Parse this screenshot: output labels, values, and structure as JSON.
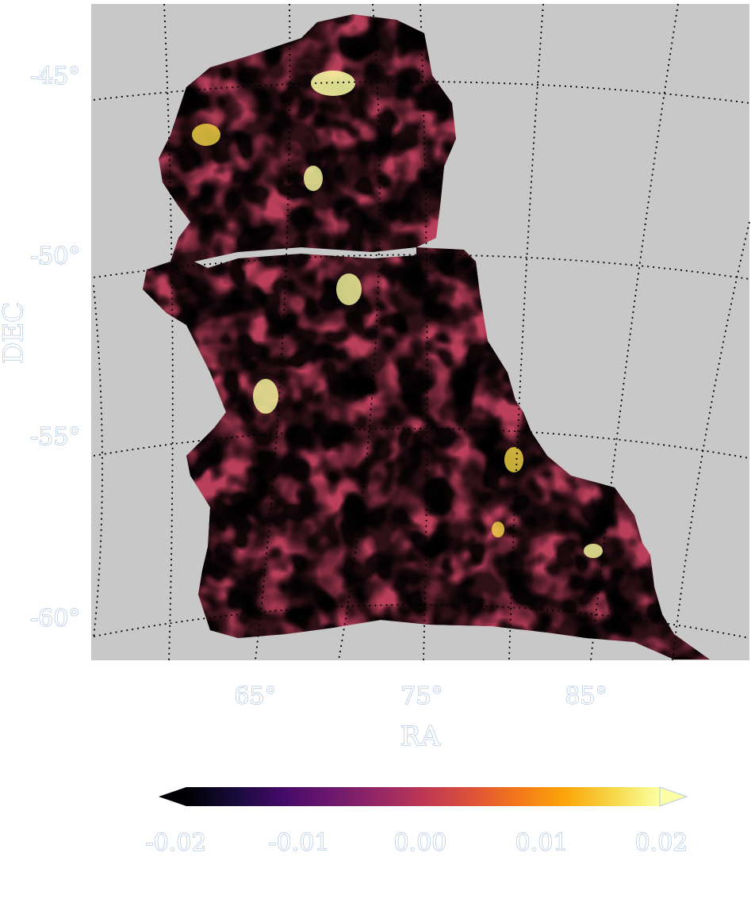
{
  "chart_data": {
    "type": "heatmap",
    "projection": "orthographic sky map (curved RA/DEC graticule)",
    "xlabel": "RA",
    "ylabel": "DEC",
    "ra_ticks": [
      "65°",
      "75°",
      "85°"
    ],
    "dec_ticks": [
      "-45°",
      "-50°",
      "-55°",
      "-60°"
    ],
    "ra_range": [
      55,
      95
    ],
    "dec_range": [
      -62,
      -43
    ],
    "colormap": "inferno",
    "color_range": [
      -0.02,
      0.02
    ],
    "colorbar_ticks": [
      "-0.02",
      "-0.01",
      "0.00",
      "0.01",
      "0.02"
    ],
    "colorbar_extend": "max",
    "background_color": "#c8c8c8",
    "graticule_style": "black dotted",
    "grid": true
  }
}
